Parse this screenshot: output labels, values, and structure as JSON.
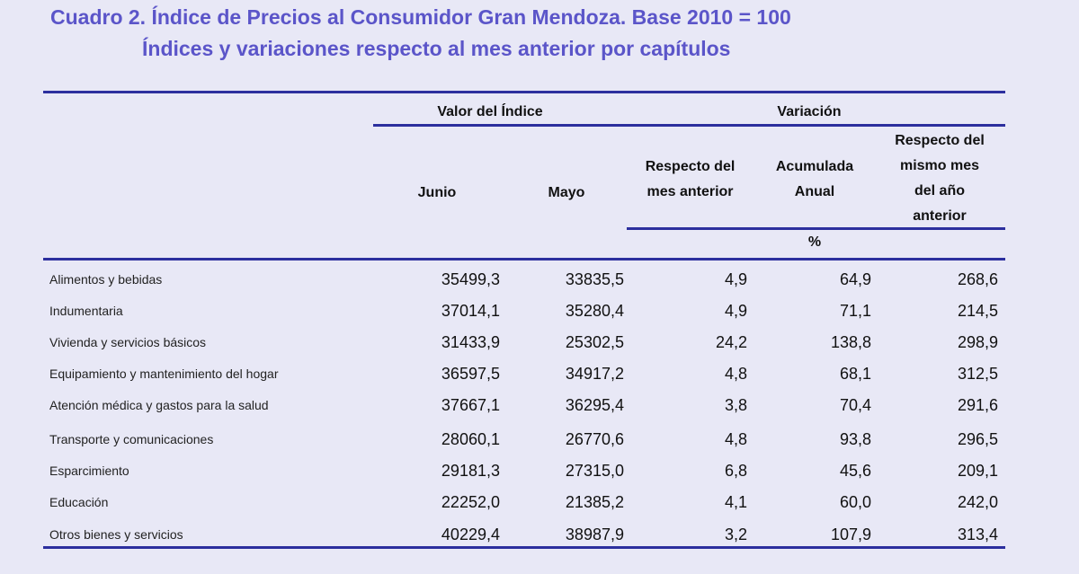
{
  "title": {
    "line1": "Cuadro 2. Índice de Precios al Consumidor Gran Mendoza. Base 2010 = 100",
    "line2": "Índices y variaciones respecto al mes anterior por capítulos"
  },
  "header": {
    "valor_indice": "Valor del Índice",
    "variacion": "Variación",
    "junio": "Junio",
    "mayo": "Mayo",
    "respecto_mes_anterior": [
      "Respecto del",
      "mes anterior"
    ],
    "acumulada_anual": [
      "Acumulada",
      "Anual"
    ],
    "respecto_mismo_mes": [
      "Respecto del",
      "mismo mes",
      "del año",
      "anterior"
    ],
    "unit": "%"
  },
  "colors": {
    "title": "#5b55c9",
    "rule": "#2c2f9e",
    "background": "#e8e8f6"
  },
  "rows": [
    {
      "label": "Alimentos y bebidas",
      "junio": "35499,3",
      "mayo": "33835,5",
      "resp": "4,9",
      "acum": "64,9",
      "anio": "268,6"
    },
    {
      "label": "Indumentaria",
      "junio": "37014,1",
      "mayo": "35280,4",
      "resp": "4,9",
      "acum": "71,1",
      "anio": "214,5"
    },
    {
      "label": "Vivienda y servicios básicos",
      "junio": "31433,9",
      "mayo": "25302,5",
      "resp": "24,2",
      "acum": "138,8",
      "anio": "298,9"
    },
    {
      "label": "Equipamiento y mantenimiento del hogar",
      "junio": "36597,5",
      "mayo": "34917,2",
      "resp": "4,8",
      "acum": "68,1",
      "anio": "312,5"
    },
    {
      "label": "Atención médica y gastos para la salud",
      "junio": "37667,1",
      "mayo": "36295,4",
      "resp": "3,8",
      "acum": "70,4",
      "anio": "291,6"
    },
    {
      "label": "Transporte y comunicaciones",
      "junio": "28060,1",
      "mayo": "26770,6",
      "resp": "4,8",
      "acum": "93,8",
      "anio": "296,5"
    },
    {
      "label": "Esparcimiento",
      "junio": "29181,3",
      "mayo": "27315,0",
      "resp": "6,8",
      "acum": "45,6",
      "anio": "209,1"
    },
    {
      "label": "Educación",
      "junio": "22252,0",
      "mayo": "21385,2",
      "resp": "4,1",
      "acum": "60,0",
      "anio": "242,0"
    },
    {
      "label": "Otros bienes y servicios",
      "junio": "40229,4",
      "mayo": "38987,9",
      "resp": "3,2",
      "acum": "107,9",
      "anio": "313,4"
    }
  ]
}
